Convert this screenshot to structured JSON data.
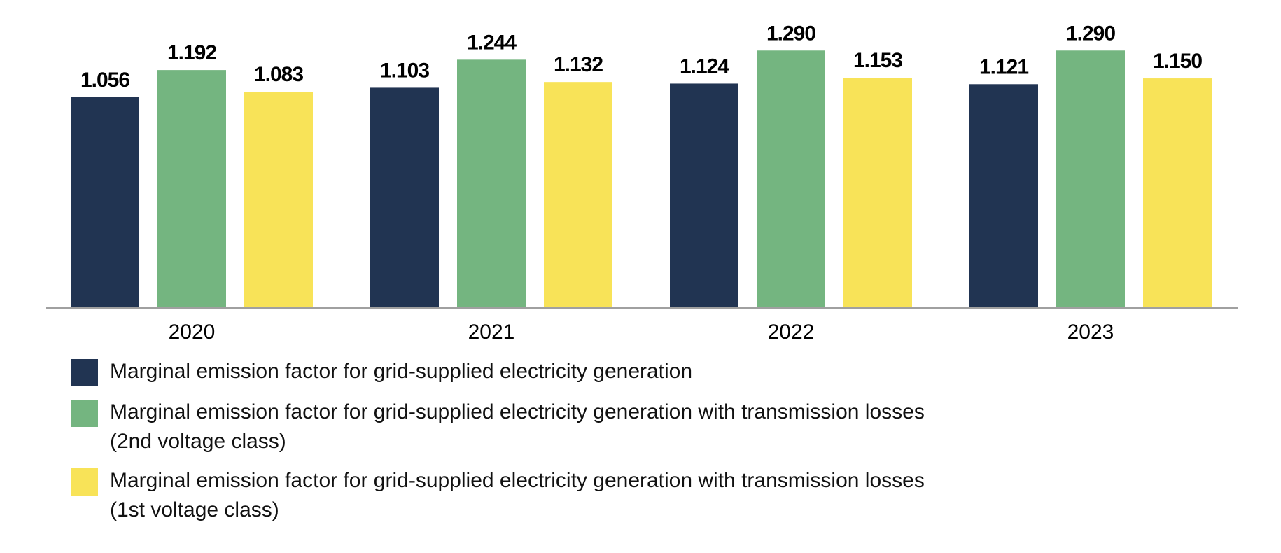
{
  "chart_data": {
    "type": "bar",
    "title": "",
    "xlabel": "",
    "ylabel": "",
    "ylim": [
      0,
      1.35
    ],
    "grid": false,
    "legend_position": "bottom-left",
    "categories": [
      "2020",
      "2021",
      "2022",
      "2023"
    ],
    "series": [
      {
        "name": "Marginal emission factor for grid-supplied electricity generation",
        "legend_lines": [
          "Marginal emission factor for grid-supplied electricity generation"
        ],
        "color": "#213452",
        "values": [
          1.056,
          1.103,
          1.124,
          1.121
        ],
        "labels": [
          "1.056",
          "1.103",
          "1.124",
          "1.121"
        ]
      },
      {
        "name": "Marginal emission factor for grid-supplied electricity generation with transmission losses (2nd voltage class)",
        "legend_lines": [
          "Marginal emission factor for grid-supplied electricity generation with transmission losses",
          "(2nd voltage class)"
        ],
        "color": "#74B580",
        "values": [
          1.192,
          1.244,
          1.29,
          1.29
        ],
        "labels": [
          "1.192",
          "1.244",
          "1.290",
          "1.290"
        ]
      },
      {
        "name": "Marginal emission factor for grid-supplied electricity generation with transmission losses (1st voltage class)",
        "legend_lines": [
          "Marginal emission factor for grid-supplied electricity generation with transmission losses",
          "(1st voltage class)"
        ],
        "color": "#F8E358",
        "values": [
          1.083,
          1.132,
          1.153,
          1.15
        ],
        "labels": [
          "1.083",
          "1.132",
          "1.153",
          "1.150"
        ]
      }
    ],
    "axis_color": "#A0A0A0"
  }
}
